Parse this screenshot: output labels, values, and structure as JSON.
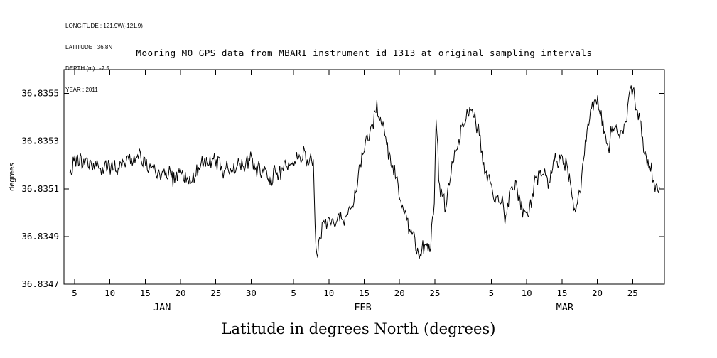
{
  "meta": {
    "lines": [
      "LONGITUDE : 121.9W(-121.9)",
      "LATITUDE : 36.8N",
      "DEPTH (m) : -2.5",
      "YEAR : 2011"
    ]
  },
  "chart_data": {
    "type": "line",
    "title": "Mooring M0 GPS data from MBARI instrument id 1313 at original sampling intervals",
    "xlabel": "Latitude in degrees North (degrees)",
    "ylabel": "degrees",
    "grid": false,
    "legend": "none",
    "line_color": "#000000",
    "x_range_days": [
      3.5,
      88.5
    ],
    "ylim": [
      36.8347,
      36.8356
    ],
    "y_ticks": [
      {
        "v": 36.8347,
        "label": "36.8347"
      },
      {
        "v": 36.8349,
        "label": "36.8349"
      },
      {
        "v": 36.8351,
        "label": "36.8351"
      },
      {
        "v": 36.8353,
        "label": "36.8353"
      },
      {
        "v": 36.8355,
        "label": "36.8355"
      }
    ],
    "x_ticks": [
      {
        "day": 5,
        "label": "5"
      },
      {
        "day": 10,
        "label": "10"
      },
      {
        "day": 15,
        "label": "15"
      },
      {
        "day": 20,
        "label": "20"
      },
      {
        "day": 25,
        "label": "25"
      },
      {
        "day": 30,
        "label": "30"
      },
      {
        "day": 36,
        "label": "5"
      },
      {
        "day": 41,
        "label": "10"
      },
      {
        "day": 46,
        "label": "15"
      },
      {
        "day": 51,
        "label": "20"
      },
      {
        "day": 56,
        "label": "25"
      },
      {
        "day": 64,
        "label": "5"
      },
      {
        "day": 69,
        "label": "10"
      },
      {
        "day": 74,
        "label": "15"
      },
      {
        "day": 79,
        "label": "20"
      },
      {
        "day": 84,
        "label": "25"
      }
    ],
    "month_labels": [
      {
        "day": 17.4,
        "label": "JAN"
      },
      {
        "day": 45.8,
        "label": "FEB"
      },
      {
        "day": 74.4,
        "label": "MAR"
      }
    ],
    "series": [
      {
        "name": "latitude",
        "day_start": 4.3,
        "day_end": 87.8,
        "trend": [
          [
            4.3,
            36.8352
          ],
          [
            8,
            36.83519
          ],
          [
            12,
            36.83521
          ],
          [
            16,
            36.83519
          ],
          [
            19,
            36.83513
          ],
          [
            21,
            36.83512
          ],
          [
            23,
            36.83518
          ],
          [
            26,
            36.8352
          ],
          [
            28,
            36.83518
          ],
          [
            30,
            36.83521
          ],
          [
            32,
            36.83517
          ],
          [
            34,
            36.83515
          ],
          [
            36,
            36.83519
          ],
          [
            38,
            36.83521
          ],
          [
            38.8,
            36.83516
          ],
          [
            39.2,
            36.83481
          ],
          [
            40,
            36.83492
          ],
          [
            41,
            36.83497
          ],
          [
            42,
            36.83494
          ],
          [
            43,
            36.835
          ],
          [
            44,
            36.83498
          ],
          [
            44.8,
            36.83508
          ],
          [
            45.5,
            36.8352
          ],
          [
            46.3,
            36.83528
          ],
          [
            47,
            36.83532
          ],
          [
            47.8,
            36.83543
          ],
          [
            48.5,
            36.83536
          ],
          [
            49.3,
            36.83524
          ],
          [
            50,
            36.83516
          ],
          [
            51,
            36.83506
          ],
          [
            52,
            36.835
          ],
          [
            53,
            36.83493
          ],
          [
            53.8,
            36.83485
          ],
          [
            54.5,
            36.83492
          ],
          [
            55.3,
            36.83488
          ],
          [
            55.9,
            36.835
          ],
          [
            56.2,
            36.83544
          ],
          [
            56.6,
            36.83512
          ],
          [
            57.5,
            36.83505
          ],
          [
            58.5,
            36.83522
          ],
          [
            59.5,
            36.83532
          ],
          [
            60.5,
            36.83541
          ],
          [
            61.3,
            36.83545
          ],
          [
            62,
            36.83537
          ],
          [
            63,
            36.83524
          ],
          [
            64,
            36.83512
          ],
          [
            65,
            36.83503
          ],
          [
            66,
            36.83497
          ],
          [
            66.8,
            36.83507
          ],
          [
            67.5,
            36.83513
          ],
          [
            68.3,
            36.83502
          ],
          [
            69,
            36.83496
          ],
          [
            70,
            36.83508
          ],
          [
            71,
            36.83519
          ],
          [
            72,
            36.83515
          ],
          [
            73,
            36.83524
          ],
          [
            74,
            36.83519
          ],
          [
            75,
            36.83512
          ],
          [
            75.8,
            36.83502
          ],
          [
            76.5,
            36.83508
          ],
          [
            77.3,
            36.83532
          ],
          [
            78.2,
            36.83544
          ],
          [
            79,
            36.83551
          ],
          [
            79.8,
            36.83537
          ],
          [
            80.6,
            36.83525
          ],
          [
            81.4,
            36.83538
          ],
          [
            82.2,
            36.83531
          ],
          [
            83,
            36.83539
          ],
          [
            83.8,
            36.83551
          ],
          [
            84.6,
            36.83541
          ],
          [
            85.4,
            36.83528
          ],
          [
            86.2,
            36.83519
          ],
          [
            87,
            36.83512
          ],
          [
            87.8,
            36.83507
          ]
        ],
        "noise": {
          "amplitude": 4.5e-05,
          "samples_per_day": 8,
          "seed": 42
        }
      }
    ]
  }
}
